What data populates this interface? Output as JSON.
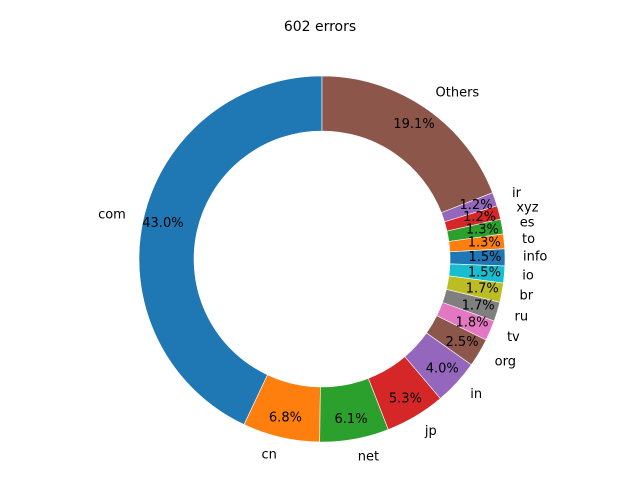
{
  "chart_data": {
    "type": "pie",
    "donut": true,
    "title": "602 errors",
    "start_angle_deg": 90,
    "direction": "counterclockwise",
    "slices": [
      {
        "label": "com",
        "value": 43.0,
        "pct_label": "43.0%",
        "color": "#1f77b4"
      },
      {
        "label": "cn",
        "value": 6.8,
        "pct_label": "6.8%",
        "color": "#ff7f0e"
      },
      {
        "label": "net",
        "value": 6.1,
        "pct_label": "6.1%",
        "color": "#2ca02c"
      },
      {
        "label": "jp",
        "value": 5.3,
        "pct_label": "5.3%",
        "color": "#d62728"
      },
      {
        "label": "in",
        "value": 4.0,
        "pct_label": "4.0%",
        "color": "#9467bd"
      },
      {
        "label": "org",
        "value": 2.5,
        "pct_label": "2.5%",
        "color": "#8c564b"
      },
      {
        "label": "tv",
        "value": 1.8,
        "pct_label": "1.8%",
        "color": "#e377c2"
      },
      {
        "label": "ru",
        "value": 1.7,
        "pct_label": "1.7%",
        "color": "#7f7f7f"
      },
      {
        "label": "br",
        "value": 1.7,
        "pct_label": "1.7%",
        "color": "#bcbd22"
      },
      {
        "label": "io",
        "value": 1.5,
        "pct_label": "1.5%",
        "color": "#17becf"
      },
      {
        "label": "info",
        "value": 1.5,
        "pct_label": "1.5%",
        "color": "#1f77b4"
      },
      {
        "label": "to",
        "value": 1.3,
        "pct_label": "1.3%",
        "color": "#ff7f0e"
      },
      {
        "label": "es",
        "value": 1.3,
        "pct_label": "1.3%",
        "color": "#2ca02c"
      },
      {
        "label": "xyz",
        "value": 1.2,
        "pct_label": "1.2%",
        "color": "#d62728"
      },
      {
        "label": "ir",
        "value": 1.2,
        "pct_label": "1.2%",
        "color": "#9467bd"
      },
      {
        "label": "Others",
        "value": 19.1,
        "pct_label": "19.1%",
        "color": "#8c564b"
      }
    ]
  }
}
